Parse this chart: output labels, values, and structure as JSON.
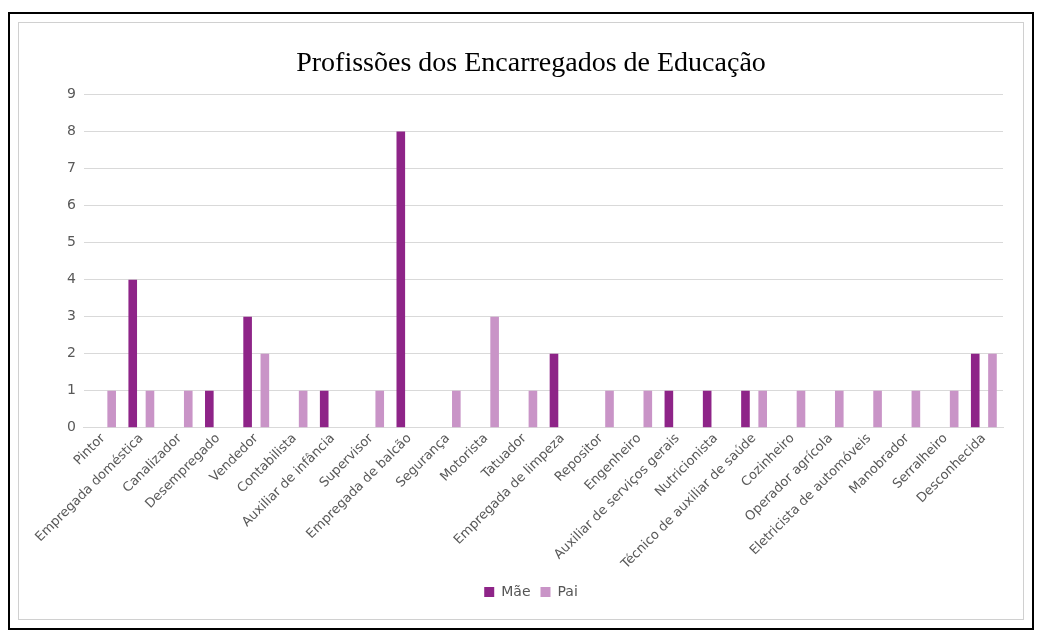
{
  "chart_data": {
    "type": "bar",
    "title": "Profissões dos Encarregados de Educação",
    "categories": [
      "Pintor",
      "Empregada doméstica",
      "Canalizador",
      "Desempregado",
      "Vendedor",
      "Contabilista",
      "Auxiliar de infância",
      "Supervisor",
      "Empregada de balcão",
      "Segurança",
      "Motorista",
      "Tatuador",
      "Empregada de limpeza",
      "Repositor",
      "Engenheiro",
      "Auxiliar de serviços gerais",
      "Nutricionista",
      "Técnico de auxiliar de saúde",
      "Cozinheiro",
      "Operador agrícola",
      "Eletricista de automóveis",
      "Manobrador",
      "Serralheiro",
      "Desconhecida"
    ],
    "series": [
      {
        "name": "Mãe",
        "color": "#8e2488",
        "values": [
          0,
          4,
          0,
          1,
          3,
          0,
          1,
          0,
          8,
          0,
          0,
          0,
          2,
          0,
          0,
          1,
          1,
          1,
          0,
          0,
          0,
          0,
          0,
          2
        ]
      },
      {
        "name": "Pai",
        "color": "#c994c7",
        "values": [
          1,
          1,
          1,
          0,
          2,
          1,
          0,
          1,
          0,
          1,
          3,
          1,
          0,
          1,
          1,
          0,
          0,
          1,
          1,
          1,
          1,
          1,
          1,
          2
        ]
      }
    ],
    "ylim": [
      0,
      9
    ],
    "yticks": [
      0,
      1,
      2,
      3,
      4,
      5,
      6,
      7,
      8,
      9
    ],
    "grid": "y",
    "legend": "bottom"
  }
}
